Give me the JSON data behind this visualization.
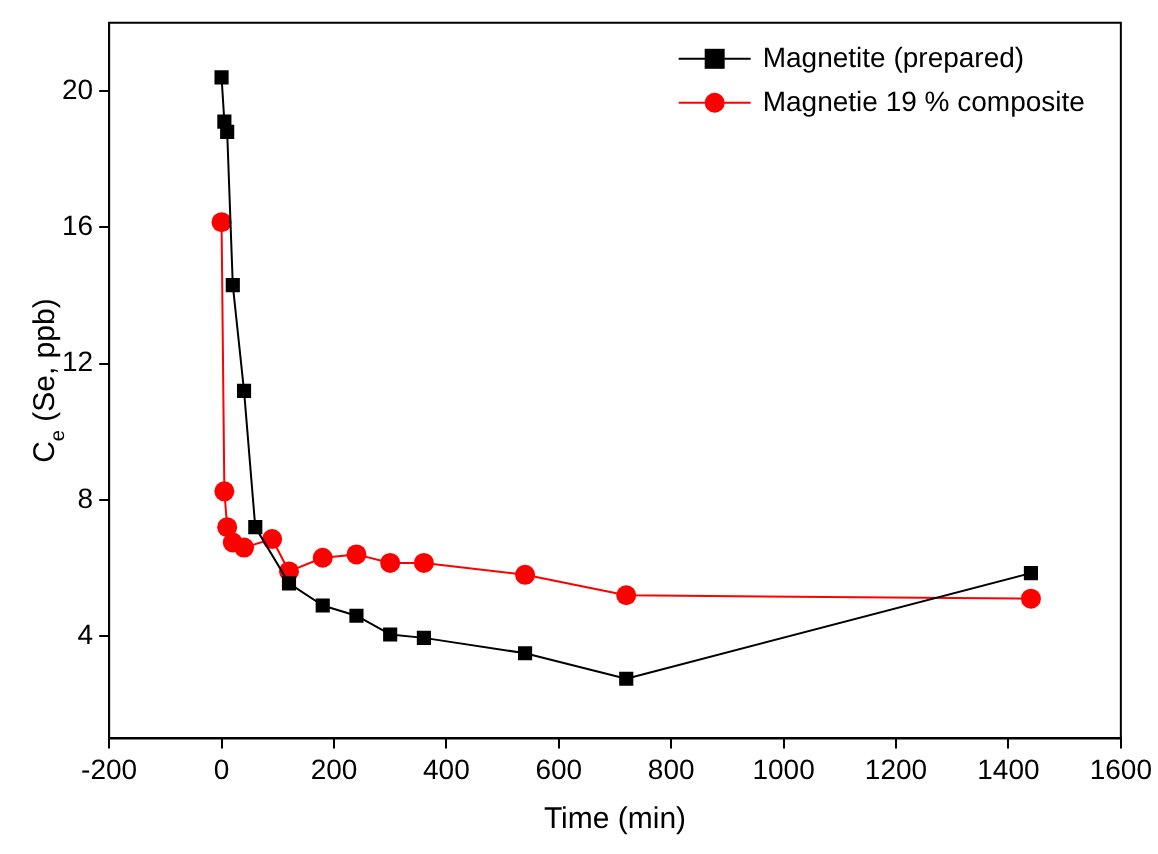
{
  "chart_data": {
    "type": "line",
    "xlabel": "Time (min)",
    "ylabel": "C$_{e}$ (Se, ppb)",
    "xlim": [
      -200,
      1600
    ],
    "xticks": [
      -200,
      0,
      200,
      400,
      600,
      800,
      1000,
      1200,
      1400,
      1600
    ],
    "ylim": [
      1,
      22
    ],
    "yticks": [
      4,
      8,
      12,
      16,
      20
    ],
    "grid": false,
    "legend": "top right",
    "line_style": "solid",
    "series": [
      {
        "name": "Magnetite (prepared)",
        "color": "#000000",
        "marker": "square",
        "x": [
          0,
          5,
          10,
          20,
          40,
          60,
          120,
          180,
          240,
          300,
          360,
          540,
          720,
          1440
        ],
        "values": [
          20.4,
          19.1,
          18.8,
          14.3,
          11.2,
          7.2,
          5.55,
          4.9,
          4.6,
          4.05,
          3.95,
          3.5,
          2.75,
          5.85
        ]
      },
      {
        "name": "Magnetie 19 % composite",
        "color": "#ff0000",
        "marker": "circle",
        "x": [
          0,
          5,
          10,
          20,
          40,
          90,
          120,
          180,
          240,
          300,
          360,
          540,
          720,
          1440
        ],
        "values": [
          16.15,
          8.25,
          7.2,
          6.75,
          6.6,
          6.85,
          5.9,
          6.3,
          6.4,
          6.15,
          6.15,
          5.8,
          5.2,
          5.1
        ]
      }
    ]
  }
}
